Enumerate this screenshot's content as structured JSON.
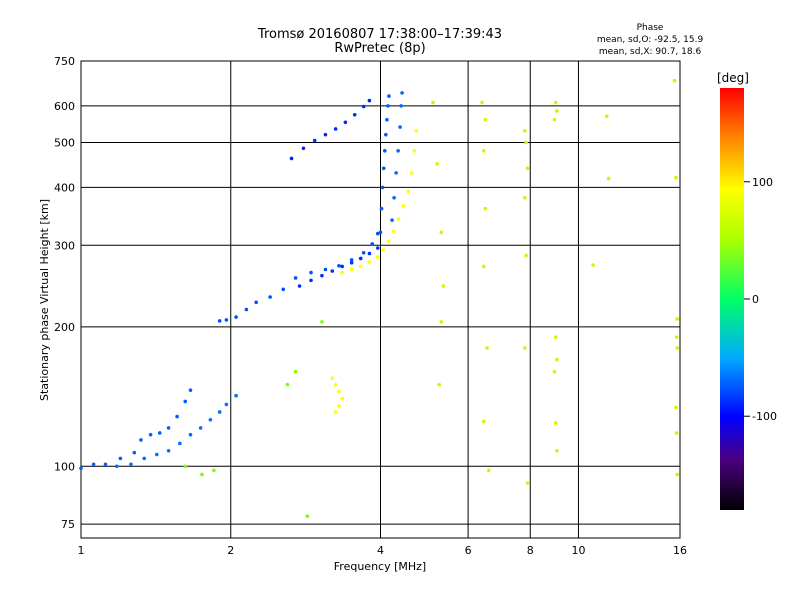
{
  "chart_data": {
    "type": "scatter",
    "title": "Tromsø 20160807 17:38:00–17:39:43",
    "subtitle": "RwPretec (8p)",
    "xlabel": "Frequency [MHz]",
    "ylabel": "Stationary phase Virtual Height [km]",
    "x_scale": "log",
    "y_scale": "log",
    "xlim": [
      1,
      16
    ],
    "ylim": [
      70,
      750
    ],
    "x_ticks": [
      1,
      2,
      4,
      6,
      8,
      10,
      16
    ],
    "y_ticks": [
      75,
      100,
      200,
      300,
      400,
      500,
      600,
      750
    ],
    "grid": true,
    "phase_stats": {
      "heading": "Phase",
      "line_o": "mean, sd,O: -92.5, 15.9",
      "line_x": "mean, sd,X:  90.7, 18.6"
    },
    "colorbar": {
      "label": "[deg]",
      "range": [
        -180,
        180
      ],
      "ticks": [
        {
          "value": 100,
          "label": "100"
        },
        {
          "value": 0,
          "label": "0"
        },
        {
          "value": -100,
          "label": "-100"
        }
      ]
    },
    "series": [
      {
        "points": [
          [
            1.0,
            99
          ],
          [
            1.06,
            101
          ],
          [
            1.12,
            101
          ],
          [
            1.2,
            104
          ],
          [
            1.28,
            107
          ],
          [
            1.32,
            114
          ],
          [
            1.38,
            117
          ],
          [
            1.44,
            118
          ],
          [
            1.5,
            121
          ],
          [
            1.56,
            128
          ],
          [
            1.62,
            138
          ],
          [
            1.66,
            146
          ]
        ],
        "phase": -110
      },
      {
        "points": [
          [
            1.18,
            100
          ],
          [
            1.26,
            101
          ],
          [
            1.34,
            104
          ],
          [
            1.42,
            106
          ],
          [
            1.5,
            108
          ],
          [
            1.58,
            112
          ],
          [
            1.66,
            117
          ],
          [
            1.74,
            121
          ],
          [
            1.82,
            126
          ],
          [
            1.9,
            131
          ],
          [
            1.96,
            136
          ],
          [
            2.05,
            142
          ]
        ],
        "phase": -105
      },
      {
        "points": [
          [
            1.9,
            206
          ],
          [
            1.96,
            207
          ],
          [
            2.05,
            210
          ],
          [
            2.15,
            218
          ],
          [
            2.25,
            226
          ],
          [
            2.4,
            232
          ],
          [
            2.55,
            241
          ],
          [
            2.7,
            255
          ],
          [
            2.9,
            262
          ],
          [
            3.1,
            266
          ],
          [
            3.3,
            271
          ],
          [
            3.5,
            279
          ],
          [
            3.7,
            289
          ],
          [
            3.85,
            302
          ],
          [
            3.95,
            318
          ]
        ],
        "phase": -115
      },
      {
        "points": [
          [
            2.75,
            245
          ],
          [
            2.9,
            252
          ],
          [
            3.05,
            258
          ],
          [
            3.2,
            264
          ],
          [
            3.35,
            270
          ],
          [
            3.5,
            275
          ],
          [
            3.65,
            281
          ],
          [
            3.8,
            288
          ],
          [
            3.95,
            296
          ]
        ],
        "phase": -125
      },
      {
        "points": [
          [
            2.65,
            462
          ],
          [
            2.8,
            486
          ],
          [
            2.95,
            505
          ],
          [
            3.1,
            520
          ],
          [
            3.25,
            535
          ],
          [
            3.4,
            553
          ],
          [
            3.55,
            574
          ],
          [
            3.7,
            598
          ],
          [
            3.8,
            616
          ]
        ],
        "phase": -128
      },
      {
        "points": [
          [
            3.35,
            262
          ],
          [
            3.5,
            266
          ],
          [
            3.65,
            270
          ],
          [
            3.8,
            276
          ],
          [
            3.95,
            283
          ],
          [
            4.05,
            293
          ],
          [
            4.15,
            306
          ],
          [
            4.25,
            322
          ],
          [
            4.35,
            342
          ],
          [
            4.45,
            365
          ],
          [
            4.55,
            392
          ],
          [
            4.62,
            430
          ],
          [
            4.68,
            480
          ],
          [
            4.72,
            530
          ]
        ],
        "phase": 100
      },
      {
        "points": [
          [
            4.0,
            320
          ],
          [
            4.02,
            360
          ],
          [
            4.04,
            400
          ],
          [
            4.06,
            440
          ],
          [
            4.08,
            480
          ],
          [
            4.1,
            520
          ],
          [
            4.12,
            560
          ],
          [
            4.14,
            600
          ],
          [
            4.16,
            630
          ]
        ],
        "phase": -112
      },
      {
        "points": [
          [
            4.22,
            340
          ],
          [
            4.26,
            380
          ],
          [
            4.3,
            430
          ],
          [
            4.34,
            480
          ],
          [
            4.38,
            540
          ],
          [
            4.4,
            600
          ],
          [
            4.42,
            640
          ]
        ],
        "phase": -108
      },
      {
        "points": [
          [
            3.2,
            155
          ],
          [
            3.25,
            150
          ],
          [
            3.3,
            145
          ],
          [
            3.35,
            140
          ],
          [
            3.3,
            135
          ],
          [
            3.25,
            131
          ]
        ],
        "phase": 100
      },
      {
        "points": [
          [
            5.1,
            610
          ],
          [
            5.2,
            450
          ],
          [
            5.3,
            320
          ],
          [
            5.35,
            245
          ],
          [
            5.3,
            205
          ],
          [
            5.25,
            150
          ],
          [
            6.4,
            610
          ],
          [
            6.5,
            560
          ],
          [
            6.45,
            480
          ],
          [
            6.5,
            360
          ],
          [
            6.45,
            270
          ],
          [
            6.55,
            180
          ],
          [
            6.45,
            125
          ],
          [
            6.6,
            98
          ],
          [
            7.8,
            530
          ],
          [
            7.85,
            500
          ],
          [
            7.9,
            440
          ],
          [
            7.8,
            380
          ],
          [
            7.85,
            285
          ],
          [
            7.8,
            180
          ],
          [
            7.9,
            92
          ],
          [
            9.0,
            610
          ],
          [
            9.05,
            585
          ],
          [
            8.95,
            560
          ],
          [
            9.0,
            190
          ],
          [
            9.05,
            170
          ],
          [
            8.95,
            160
          ],
          [
            9.0,
            124
          ],
          [
            9.05,
            108
          ],
          [
            10.7,
            272
          ],
          [
            11.4,
            570
          ],
          [
            11.5,
            418
          ],
          [
            15.6,
            680
          ],
          [
            15.7,
            420
          ],
          [
            15.8,
            208
          ],
          [
            15.75,
            190
          ],
          [
            15.8,
            180
          ],
          [
            15.7,
            134
          ],
          [
            15.75,
            118
          ],
          [
            15.8,
            96
          ]
        ],
        "phase": 80
      },
      {
        "points": [
          [
            1.62,
            100
          ],
          [
            1.75,
            96
          ],
          [
            1.85,
            98
          ],
          [
            2.6,
            150
          ],
          [
            2.7,
            160
          ],
          [
            2.85,
            78
          ],
          [
            3.05,
            205
          ]
        ],
        "phase": 60
      }
    ]
  }
}
